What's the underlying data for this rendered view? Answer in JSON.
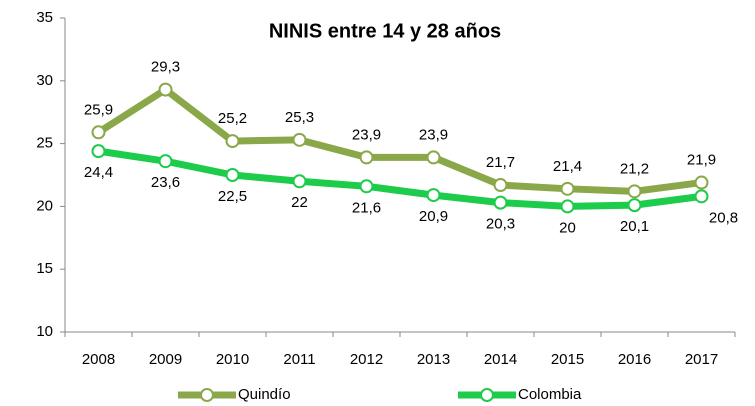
{
  "chart_data": {
    "type": "line",
    "title": "NINIS entre 14 y 28 años",
    "categories": [
      "2008",
      "2009",
      "2010",
      "2011",
      "2012",
      "2013",
      "2014",
      "2015",
      "2016",
      "2017"
    ],
    "series": [
      {
        "name": "Quindío",
        "color": "#8aa84a",
        "values": [
          25.9,
          29.3,
          25.2,
          25.3,
          23.9,
          23.9,
          21.7,
          21.4,
          21.2,
          21.9
        ],
        "value_labels": [
          "25,9",
          "29,3",
          "25,2",
          "25,3",
          "23,9",
          "23,9",
          "21,7",
          "21,4",
          "21,2",
          "21,9"
        ]
      },
      {
        "name": "Colombia",
        "color": "#1ccc4a",
        "values": [
          24.4,
          23.6,
          22.5,
          22,
          21.6,
          20.9,
          20.3,
          20,
          20.1,
          20.8
        ],
        "value_labels": [
          "24,4",
          "23,6",
          "22,5",
          "22",
          "21,6",
          "20,9",
          "20,3",
          "20",
          "20,1",
          "20,8"
        ]
      }
    ],
    "ylim": [
      10,
      35
    ],
    "yticks": [
      10,
      15,
      20,
      25,
      30,
      35
    ],
    "grid": false,
    "legend": "bottom"
  }
}
